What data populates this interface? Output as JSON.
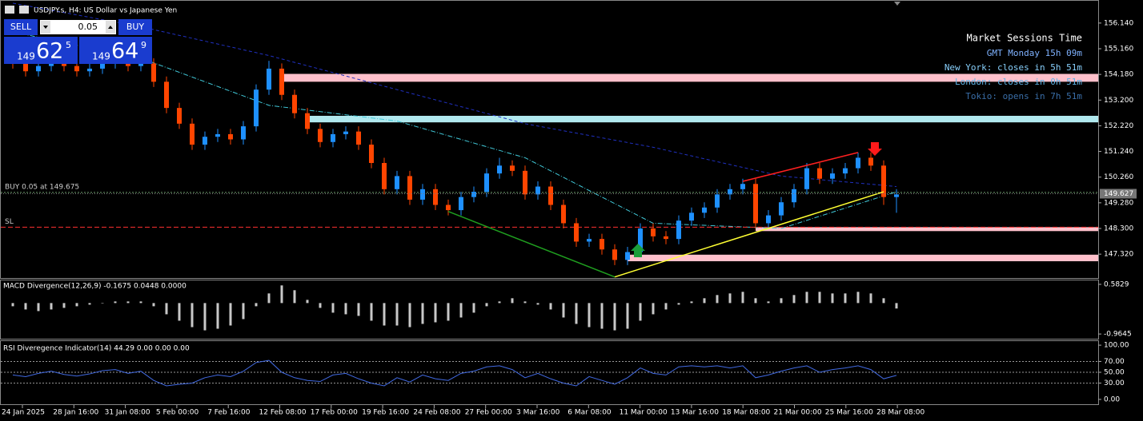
{
  "header": {
    "title": "USDJPY.s, H4:  US Dollar vs Japanese Yen"
  },
  "trade_panel": {
    "sell": "SELL",
    "buy": "BUY",
    "lot": "0.05",
    "bid": {
      "big": "149",
      "pips": "62",
      "frac": "5"
    },
    "ask": {
      "big": "149",
      "pips": "64",
      "frac": "9"
    }
  },
  "sessions": {
    "title": "Market Sessions Time",
    "lines": [
      "GMT Monday 15h 09m",
      "New York: closes in 5h 51m",
      "London: closes in 0h 51m",
      "Tokio: opens in 7h 51m"
    ]
  },
  "time_labels": [
    "24 Jan 2025",
    "28 Jan 16:00",
    "31 Jan 08:00",
    "5 Feb 00:00",
    "7 Feb 16:00",
    "12 Feb 08:00",
    "17 Feb 00:00",
    "19 Feb 16:00",
    "24 Feb 08:00",
    "27 Feb 00:00",
    "3 Mar 16:00",
    "6 Mar 08:00",
    "11 Mar 00:00",
    "13 Mar 16:00",
    "18 Mar 08:00",
    "21 Mar 00:00",
    "25 Mar 16:00",
    "28 Mar 08:00"
  ],
  "chart_data": [
    {
      "type": "candlestick",
      "candles": {
        "open": [
          154.8,
          154.6,
          154.3,
          154.5,
          154.7,
          154.5,
          154.3,
          154.4,
          154.6,
          154.7,
          154.5,
          154.6,
          153.9,
          152.9,
          152.3,
          151.5,
          151.8,
          151.9,
          151.7,
          152.2,
          153.6,
          154.4,
          153.4,
          152.7,
          152.1,
          151.6,
          151.9,
          152.0,
          151.5,
          150.8,
          149.8,
          150.3,
          149.4,
          149.8,
          149.2,
          149.0,
          149.5,
          149.7,
          150.4,
          150.7,
          150.5,
          149.6,
          149.9,
          149.2,
          148.5,
          147.8,
          147.9,
          147.5,
          147.1,
          147.4,
          148.3,
          148.0,
          147.9,
          148.6,
          148.9,
          149.1,
          149.6,
          149.8,
          150.0,
          148.5,
          148.8,
          149.3,
          149.8,
          150.6,
          150.2,
          150.4,
          150.6,
          151.0,
          150.7,
          149.5
        ],
        "high": [
          155.0,
          154.8,
          154.7,
          154.9,
          154.9,
          154.7,
          154.6,
          154.8,
          154.9,
          154.9,
          154.8,
          154.8,
          154.1,
          153.1,
          152.5,
          152.0,
          152.1,
          152.1,
          152.4,
          153.8,
          154.7,
          154.6,
          153.6,
          152.9,
          152.3,
          152.1,
          152.2,
          152.2,
          151.7,
          151.0,
          150.5,
          150.5,
          150.0,
          150.0,
          149.4,
          149.7,
          149.9,
          150.6,
          151.0,
          150.9,
          150.7,
          150.1,
          150.1,
          149.4,
          148.7,
          148.1,
          148.1,
          147.7,
          147.6,
          148.5,
          148.5,
          148.2,
          148.8,
          149.1,
          149.3,
          149.8,
          150.0,
          150.2,
          150.2,
          149.0,
          149.5,
          150.0,
          150.8,
          150.8,
          150.6,
          150.8,
          151.2,
          151.2,
          150.9,
          149.8
        ],
        "low": [
          154.4,
          154.1,
          154.1,
          154.3,
          154.3,
          154.1,
          154.1,
          154.2,
          154.4,
          154.3,
          154.3,
          153.7,
          152.7,
          152.1,
          151.3,
          151.3,
          151.6,
          151.5,
          151.5,
          152.0,
          153.4,
          153.2,
          152.5,
          151.9,
          151.4,
          151.4,
          151.7,
          151.3,
          150.6,
          149.6,
          149.6,
          149.2,
          149.2,
          149.0,
          148.8,
          148.8,
          149.3,
          149.5,
          150.2,
          150.3,
          149.4,
          149.4,
          149.0,
          148.3,
          147.6,
          147.6,
          147.3,
          146.9,
          146.9,
          147.2,
          147.8,
          147.7,
          147.7,
          148.4,
          148.7,
          148.9,
          149.4,
          149.6,
          148.3,
          148.3,
          148.6,
          149.1,
          149.6,
          150.0,
          150.0,
          150.2,
          150.4,
          150.5,
          149.2,
          148.9
        ],
        "close": [
          154.6,
          154.3,
          154.5,
          154.7,
          154.5,
          154.3,
          154.4,
          154.6,
          154.7,
          154.5,
          154.6,
          153.9,
          152.9,
          152.3,
          151.5,
          151.8,
          151.9,
          151.7,
          152.2,
          153.6,
          154.4,
          153.4,
          152.7,
          152.1,
          151.6,
          151.9,
          152.0,
          151.5,
          150.8,
          149.8,
          150.3,
          149.4,
          149.8,
          149.2,
          149.0,
          149.5,
          149.7,
          150.4,
          150.7,
          150.5,
          149.6,
          149.9,
          149.2,
          148.5,
          147.8,
          147.9,
          147.5,
          147.1,
          147.4,
          148.3,
          148.0,
          147.9,
          148.6,
          148.9,
          149.1,
          149.6,
          149.8,
          150.0,
          148.5,
          148.8,
          149.3,
          149.8,
          150.6,
          150.2,
          150.4,
          150.6,
          151.0,
          150.7,
          149.5,
          149.6
        ]
      },
      "up_color": "#1e90ff",
      "down_color": "#ff4500",
      "ylim": [
        146.41,
        157.02
      ],
      "yticks": [
        {
          "value": 156.14,
          "label": "156.140"
        },
        {
          "value": 155.16,
          "label": "155.160"
        },
        {
          "value": 154.18,
          "label": "154.180"
        },
        {
          "value": 153.2,
          "label": "153.200"
        },
        {
          "value": 152.22,
          "label": "152.220"
        },
        {
          "value": 151.24,
          "label": "151.240"
        },
        {
          "value": 150.26,
          "label": "150.260"
        },
        {
          "value": 149.28,
          "label": "149.280"
        },
        {
          "value": 148.3,
          "label": "148.300"
        },
        {
          "value": 147.32,
          "label": "147.320"
        }
      ],
      "zones": [
        {
          "start": 21,
          "low": 153.9,
          "high": 154.2,
          "color": "#ffc0cb"
        },
        {
          "start": 23,
          "low": 152.35,
          "high": 152.6,
          "color": "#b0e8ee"
        },
        {
          "start": 58,
          "low": 148.2,
          "high": 148.35,
          "color": "#ffc0cb"
        },
        {
          "start": 48,
          "low": 147.05,
          "high": 147.3,
          "color": "#ffc0cb"
        }
      ],
      "levels": [
        {
          "label": "BUY 0.05 at 149.675",
          "value": 149.675,
          "color": "#6e9e6e",
          "dash": "2,2"
        },
        {
          "label": "SL",
          "value": 148.35,
          "color": "#ff3030",
          "dash": "6,3"
        }
      ],
      "last_price": 149.627,
      "trendlines": [
        {
          "from": [
            34,
            148.95
          ],
          "to": [
            47,
            146.45
          ],
          "color": "#1f9e1f"
        },
        {
          "from": [
            47,
            146.45
          ],
          "to": [
            68,
            149.7
          ],
          "color": "#ffff33"
        },
        {
          "from": [
            57,
            150.1
          ],
          "to": [
            66,
            151.2
          ],
          "color": "#ff2020"
        }
      ],
      "moving_averages": [
        {
          "color": "#2030c0",
          "dash": "4,3",
          "index": [
            0,
            10,
            20,
            30,
            40,
            50,
            60,
            69
          ],
          "values": [
            156.9,
            156.0,
            154.9,
            153.6,
            152.3,
            151.4,
            150.3,
            149.9
          ]
        },
        {
          "color": "#40c8d8",
          "dash": "6,2,1,2",
          "index": [
            0,
            10,
            20,
            30,
            40,
            50,
            60,
            69
          ],
          "values": [
            155.8,
            154.8,
            153.0,
            152.4,
            151.0,
            148.5,
            148.3,
            149.7
          ]
        }
      ]
    },
    {
      "type": "histogram",
      "title": "MACD Divergence(12,26,9) -0.1675 0.0448 0.0000",
      "color": "#c8c8c8",
      "values": [
        -0.1,
        -0.2,
        -0.25,
        -0.2,
        -0.15,
        -0.1,
        -0.05,
        0.0,
        0.05,
        0.05,
        0.05,
        -0.1,
        -0.35,
        -0.55,
        -0.75,
        -0.85,
        -0.8,
        -0.7,
        -0.5,
        -0.1,
        0.3,
        0.55,
        0.4,
        0.1,
        -0.15,
        -0.3,
        -0.35,
        -0.4,
        -0.55,
        -0.7,
        -0.7,
        -0.75,
        -0.65,
        -0.6,
        -0.55,
        -0.45,
        -0.3,
        -0.1,
        0.05,
        0.15,
        0.05,
        -0.05,
        -0.2,
        -0.45,
        -0.65,
        -0.75,
        -0.8,
        -0.85,
        -0.8,
        -0.55,
        -0.35,
        -0.2,
        -0.05,
        0.05,
        0.15,
        0.25,
        0.3,
        0.35,
        0.15,
        0.05,
        0.15,
        0.25,
        0.35,
        0.35,
        0.3,
        0.3,
        0.35,
        0.3,
        0.15,
        -0.17
      ],
      "ylim": [
        -1.136,
        0.706
      ],
      "yticks": [
        0.5829,
        -0.9645
      ]
    },
    {
      "type": "line",
      "title": "RSI Diveregence Indicator(14) 44.29 0.00 0.00 0.00",
      "color": "#4169e1",
      "values": [
        45,
        42,
        48,
        52,
        46,
        43,
        47,
        53,
        55,
        48,
        52,
        35,
        25,
        28,
        30,
        40,
        45,
        42,
        52,
        68,
        72,
        50,
        40,
        35,
        33,
        45,
        48,
        38,
        30,
        25,
        40,
        32,
        45,
        38,
        35,
        48,
        52,
        60,
        62,
        55,
        40,
        48,
        38,
        30,
        25,
        42,
        35,
        28,
        40,
        58,
        48,
        45,
        60,
        62,
        60,
        62,
        58,
        62,
        40,
        45,
        52,
        58,
        62,
        50,
        55,
        58,
        62,
        55,
        38,
        44.29
      ],
      "ylim": [
        -10.4,
        107.5
      ],
      "yticks": [
        {
          "value": 100,
          "label": "100.00"
        },
        {
          "value": 70,
          "label": "70.00"
        },
        {
          "value": 50,
          "label": "50.00"
        },
        {
          "value": 30,
          "label": "30.00"
        },
        {
          "value": 0,
          "label": "0.00"
        }
      ],
      "grid": [
        70,
        50,
        30
      ]
    }
  ]
}
